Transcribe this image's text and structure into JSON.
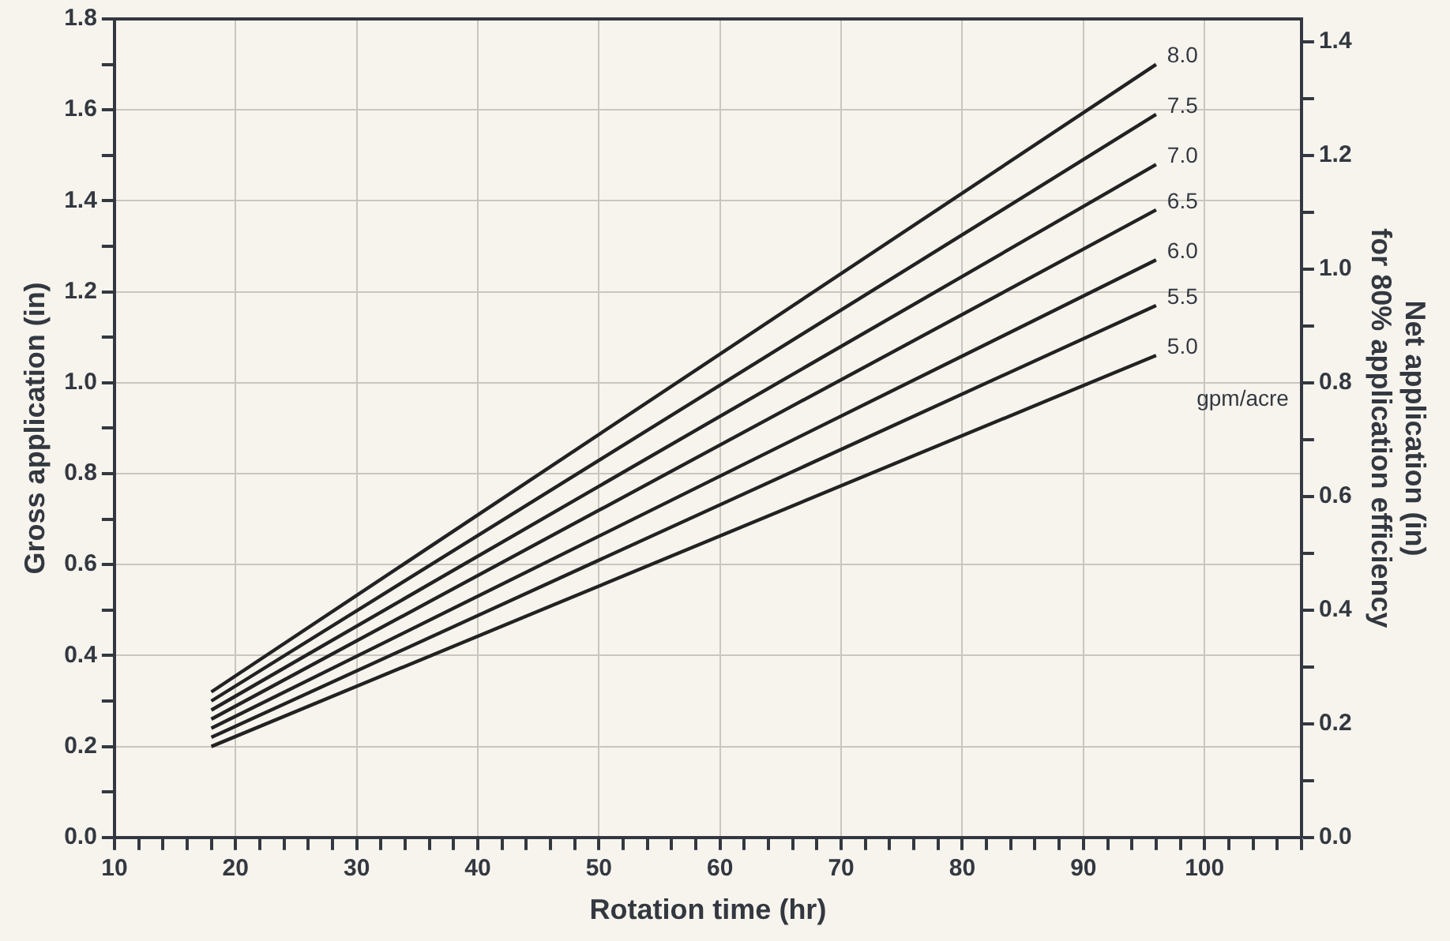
{
  "chart_data": {
    "type": "line",
    "xlabel": "Rotation time (hr)",
    "ylabel": "Gross application (in)",
    "y2label": "Net application (in)\nfor 80% application efficiency",
    "x": [
      18,
      96
    ],
    "series": [
      {
        "name": "8.0",
        "color": "#222222",
        "values": [
          0.32,
          1.7
        ]
      },
      {
        "name": "7.5",
        "color": "#222222",
        "values": [
          0.3,
          1.59
        ]
      },
      {
        "name": "7.0",
        "color": "#222222",
        "values": [
          0.28,
          1.48
        ]
      },
      {
        "name": "6.5",
        "color": "#222222",
        "values": [
          0.26,
          1.38
        ]
      },
      {
        "name": "6.0",
        "color": "#222222",
        "values": [
          0.24,
          1.27
        ]
      },
      {
        "name": "5.5",
        "color": "#222222",
        "values": [
          0.22,
          1.17
        ]
      },
      {
        "name": "5.0",
        "color": "#222222",
        "values": [
          0.2,
          1.06
        ]
      }
    ],
    "annotations": [
      "gpm/acre"
    ],
    "xlim": [
      10,
      108
    ],
    "xticks": [
      10,
      {
        "value": 12,
        "label": null
      },
      {
        "value": 14,
        "label": null
      },
      {
        "value": 16,
        "label": null
      },
      {
        "value": 18,
        "label": null
      },
      20,
      {
        "value": 22,
        "label": null
      },
      {
        "value": 24,
        "label": null
      },
      {
        "value": 26,
        "label": null
      },
      {
        "value": 28,
        "label": null
      },
      30,
      {
        "value": 32,
        "label": null
      },
      {
        "value": 34,
        "label": null
      },
      {
        "value": 36,
        "label": null
      },
      {
        "value": 38,
        "label": null
      },
      40,
      {
        "value": 42,
        "label": null
      },
      {
        "value": 44,
        "label": null
      },
      {
        "value": 46,
        "label": null
      },
      {
        "value": 48,
        "label": null
      },
      50,
      {
        "value": 52,
        "label": null
      },
      {
        "value": 54,
        "label": null
      },
      {
        "value": 56,
        "label": null
      },
      {
        "value": 58,
        "label": null
      },
      60,
      {
        "value": 62,
        "label": null
      },
      {
        "value": 64,
        "label": null
      },
      {
        "value": 66,
        "label": null
      },
      {
        "value": 68,
        "label": null
      },
      70,
      {
        "value": 72,
        "label": null
      },
      {
        "value": 74,
        "label": null
      },
      {
        "value": 76,
        "label": null
      },
      {
        "value": 78,
        "label": null
      },
      80,
      {
        "value": 82,
        "label": null
      },
      {
        "value": 84,
        "label": null
      },
      {
        "value": 86,
        "label": null
      },
      {
        "value": 88,
        "label": null
      },
      90,
      {
        "value": 92,
        "label": null
      },
      {
        "value": 94,
        "label": null
      },
      {
        "value": 96,
        "label": null
      },
      {
        "value": 98,
        "label": null
      },
      100,
      {
        "value": 102,
        "label": null
      },
      {
        "value": 104,
        "label": null
      },
      {
        "value": 106,
        "label": null
      },
      {
        "value": 108,
        "label": null
      }
    ],
    "ylim": [
      0,
      1.8
    ],
    "yticks": [
      {
        "value": 0,
        "label": "0.0"
      },
      {
        "value": 0.1,
        "label": null
      },
      {
        "value": 0.2,
        "label": "0.2"
      },
      {
        "value": 0.3,
        "label": null
      },
      {
        "value": 0.4,
        "label": "0.4"
      },
      {
        "value": 0.5,
        "label": null
      },
      {
        "value": 0.6,
        "label": "0.6"
      },
      {
        "value": 0.7,
        "label": null
      },
      {
        "value": 0.8,
        "label": "0.8"
      },
      {
        "value": 0.9,
        "label": null
      },
      {
        "value": 1.0,
        "label": "1.0"
      },
      {
        "value": 1.1,
        "label": null
      },
      {
        "value": 1.2,
        "label": "1.2"
      },
      {
        "value": 1.3,
        "label": null
      },
      {
        "value": 1.4,
        "label": "1.4"
      },
      {
        "value": 1.5,
        "label": null
      },
      {
        "value": 1.6,
        "label": "1.6"
      },
      {
        "value": 1.7,
        "label": null
      },
      {
        "value": 1.8,
        "label": "1.8"
      }
    ],
    "y2lim": [
      0,
      1.44
    ],
    "y2ticks": [
      {
        "value": 0,
        "label": "0.0"
      },
      {
        "value": 0.1,
        "label": null
      },
      {
        "value": 0.2,
        "label": "0.2"
      },
      {
        "value": 0.3,
        "label": null
      },
      {
        "value": 0.4,
        "label": "0.4"
      },
      {
        "value": 0.5,
        "label": null
      },
      {
        "value": 0.6,
        "label": "0.6"
      },
      {
        "value": 0.7,
        "label": null
      },
      {
        "value": 0.8,
        "label": "0.8"
      },
      {
        "value": 0.9,
        "label": null
      },
      {
        "value": 1.0,
        "label": "1.0"
      },
      {
        "value": 1.1,
        "label": null
      },
      {
        "value": 1.2,
        "label": "1.2"
      },
      {
        "value": 1.3,
        "label": null
      },
      {
        "value": 1.4,
        "label": "1.4"
      }
    ],
    "grid": true,
    "legend": false,
    "marker": "none",
    "line_style": "solid"
  }
}
